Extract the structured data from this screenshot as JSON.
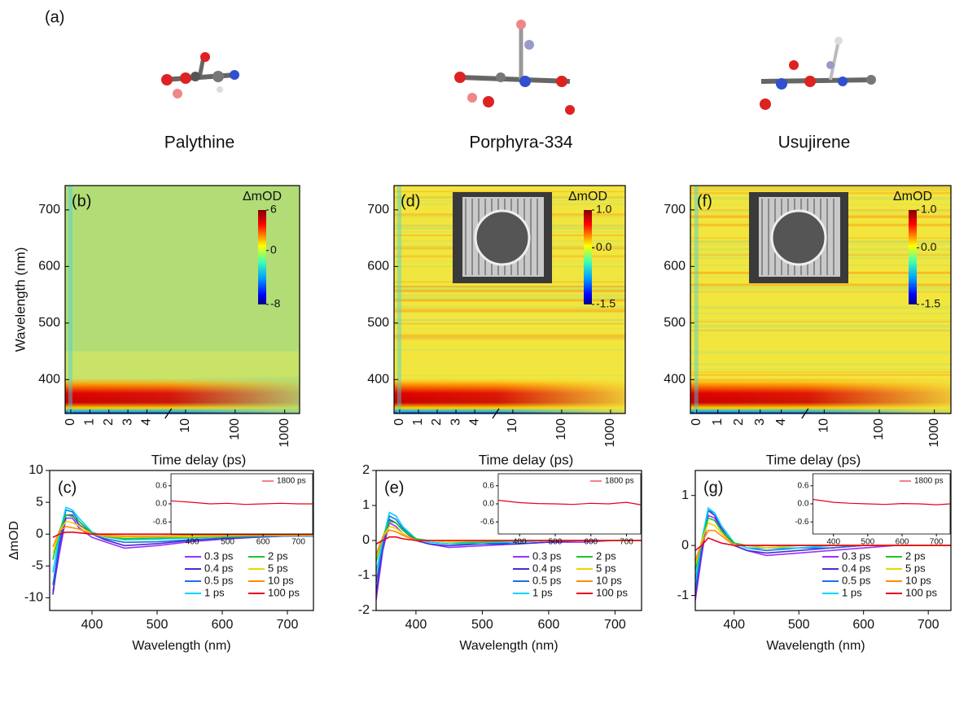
{
  "figure": {
    "panel_label": "(a)",
    "molecules": [
      "Palythine",
      "Porphyra-334",
      "Usujirene"
    ]
  },
  "chart_data": [
    {
      "type": "heatmap",
      "title": "(b)",
      "xlabel": "Time delay (ps)",
      "ylabel": "Wavelength (nm)",
      "xlim": [
        -0.3,
        2000
      ],
      "axis_break": 5,
      "xticks": [
        0,
        1,
        2,
        3,
        4,
        10,
        100,
        1000
      ],
      "ylim": [
        340,
        743
      ],
      "yticks": [
        400,
        500,
        600,
        700
      ],
      "colorbar": {
        "label": "ΔmOD",
        "lim": [
          -8,
          6
        ],
        "ticks": [
          6,
          0,
          -8
        ]
      }
    },
    {
      "type": "heatmap",
      "title": "(d)",
      "xlabel": "Time delay (ps)",
      "xlim": [
        -0.3,
        2000
      ],
      "axis_break": 5,
      "xticks": [
        0,
        1,
        2,
        3,
        4,
        10,
        100,
        1000
      ],
      "ylim": [
        340,
        743
      ],
      "yticks": [
        400,
        500,
        600,
        700
      ],
      "colorbar": {
        "label": "ΔmOD",
        "lim": [
          -1.5,
          1
        ],
        "ticks": [
          {
            "value": 1,
            "label": "1.0"
          },
          {
            "value": 0,
            "label": "0.0"
          },
          -1.5
        ]
      }
    },
    {
      "type": "heatmap",
      "title": "(f)",
      "xlabel": "Time delay (ps)",
      "xlim": [
        -0.3,
        2000
      ],
      "axis_break": 5,
      "xticks": [
        0,
        1,
        2,
        3,
        4,
        10,
        100,
        1000
      ],
      "ylim": [
        340,
        743
      ],
      "yticks": [
        400,
        500,
        600,
        700
      ],
      "colorbar": {
        "label": "ΔmOD",
        "lim": [
          -1.5,
          1
        ],
        "ticks": [
          {
            "value": 1,
            "label": "1.0"
          },
          {
            "value": 0,
            "label": "0.0"
          },
          -1.5
        ]
      }
    },
    {
      "type": "line",
      "title": "(c)",
      "xlabel": "Wavelength (nm)",
      "ylabel": "ΔmOD",
      "xlim": [
        335,
        740
      ],
      "xticks": [
        400,
        500,
        600,
        700
      ],
      "ylim": [
        -12,
        10
      ],
      "yticks": [
        10,
        5,
        0,
        -5,
        -10
      ],
      "x": [
        340,
        350,
        360,
        370,
        380,
        400,
        420,
        450,
        500,
        550,
        600,
        650,
        700,
        740
      ],
      "series": [
        {
          "name": "0.3 ps",
          "color": "#9b30ff",
          "values": [
            -9,
            -3,
            2.5,
            2.5,
            1,
            -0.5,
            -1.2,
            -2.2,
            -1.8,
            -1.2,
            -0.8,
            -0.5,
            -0.3,
            -0.3
          ]
        },
        {
          "name": "0.4 ps",
          "color": "#4b2bd0",
          "values": [
            -9.5,
            -2,
            3,
            3,
            1.5,
            0,
            -0.9,
            -1.8,
            -1.5,
            -1,
            -0.7,
            -0.5,
            -0.3,
            -0.3
          ]
        },
        {
          "name": "0.5 ps",
          "color": "#1f6fe0",
          "values": [
            -8,
            -1,
            3.8,
            3.5,
            2,
            0,
            -0.7,
            -1.3,
            -1.2,
            -0.9,
            -0.6,
            -0.4,
            -0.3,
            -0.3
          ]
        },
        {
          "name": "1 ps",
          "color": "#00d4ff",
          "values": [
            -6,
            0,
            4.2,
            3.8,
            2.5,
            0.3,
            -0.4,
            -0.9,
            -0.8,
            -0.6,
            -0.4,
            -0.3,
            -0.2,
            -0.2
          ]
        },
        {
          "name": "2 ps",
          "color": "#22c22a",
          "values": [
            -4,
            0.5,
            3,
            2.8,
            2,
            0.2,
            -0.4,
            -0.7,
            -0.6,
            -0.5,
            -0.4,
            -0.3,
            -0.2,
            -0.2
          ]
        },
        {
          "name": "5 ps",
          "color": "#e8d800",
          "values": [
            -3,
            0.5,
            2,
            1.8,
            1.3,
            0,
            -0.3,
            -0.5,
            -0.4,
            -0.4,
            -0.3,
            -0.2,
            -0.2,
            -0.2
          ]
        },
        {
          "name": "10 ps",
          "color": "#ff8c00",
          "values": [
            -2,
            0.5,
            1.2,
            1,
            0.8,
            0,
            -0.2,
            -0.3,
            -0.3,
            -0.2,
            -0.2,
            -0.2,
            -0.1,
            -0.1
          ]
        },
        {
          "name": "100 ps",
          "color": "#e8001c",
          "values": [
            -0.5,
            0,
            0.3,
            0.3,
            0.2,
            0,
            0,
            0,
            0,
            0,
            0,
            0,
            0,
            0
          ]
        }
      ],
      "inset": {
        "xlim": [
          340,
          740
        ],
        "xticks": [
          400,
          500,
          600,
          700
        ],
        "ylim": [
          -1,
          1
        ],
        "yticks": [
          0.6,
          {
            "value": 0,
            "label": "0.0"
          },
          -0.6
        ],
        "x": [
          340,
          400,
          450,
          500,
          550,
          600,
          650,
          700,
          740
        ],
        "series": [
          {
            "name": "1800 ps",
            "color": "#e8001c",
            "values": [
              0.1,
              0.05,
              0,
              0.02,
              -0.02,
              0,
              0.02,
              0,
              0
            ]
          }
        ]
      }
    },
    {
      "type": "line",
      "title": "(e)",
      "xlabel": "Wavelength (nm)",
      "xlim": [
        340,
        740
      ],
      "xticks": [
        400,
        500,
        600,
        700
      ],
      "ylim": [
        -2,
        2
      ],
      "yticks": [
        2,
        1,
        0,
        -1,
        -2
      ],
      "x": [
        340,
        350,
        360,
        370,
        380,
        400,
        420,
        450,
        500,
        550,
        600,
        650,
        700,
        740
      ],
      "series": [
        {
          "name": "0.3 ps",
          "color": "#9b30ff",
          "values": [
            -1.7,
            -0.3,
            0.5,
            0.4,
            0.2,
            0,
            -0.1,
            -0.2,
            -0.15,
            -0.1,
            -0.05,
            -0.05,
            0,
            0
          ]
        },
        {
          "name": "0.4 ps",
          "color": "#4b2bd0",
          "values": [
            -1.5,
            -0.2,
            0.6,
            0.5,
            0.3,
            0,
            -0.1,
            -0.15,
            -0.1,
            -0.1,
            -0.05,
            0,
            0,
            0
          ]
        },
        {
          "name": "0.5 ps",
          "color": "#1f6fe0",
          "values": [
            -1.2,
            -0.1,
            0.7,
            0.6,
            0.35,
            0.05,
            -0.05,
            -0.1,
            -0.1,
            -0.05,
            0,
            0,
            0,
            0
          ]
        },
        {
          "name": "1 ps",
          "color": "#00d4ff",
          "values": [
            -0.9,
            0,
            0.8,
            0.7,
            0.4,
            0.05,
            -0.05,
            -0.1,
            -0.05,
            -0.05,
            0,
            0,
            0,
            0
          ]
        },
        {
          "name": "2 ps",
          "color": "#22c22a",
          "values": [
            -0.6,
            0.1,
            0.55,
            0.5,
            0.3,
            0.05,
            0,
            -0.05,
            -0.05,
            0,
            0,
            0,
            0,
            0
          ]
        },
        {
          "name": "5 ps",
          "color": "#e8d800",
          "values": [
            -0.5,
            0.1,
            0.4,
            0.35,
            0.2,
            0,
            0,
            -0.05,
            0,
            0,
            0,
            0,
            0,
            0
          ]
        },
        {
          "name": "10 ps",
          "color": "#ff8c00",
          "values": [
            -0.4,
            0.1,
            0.3,
            0.25,
            0.15,
            0,
            0,
            0,
            0,
            0,
            0,
            0,
            0,
            0
          ]
        },
        {
          "name": "100 ps",
          "color": "#e8001c",
          "values": [
            -0.1,
            0,
            0.1,
            0.1,
            0.05,
            0,
            0,
            0,
            0,
            0,
            0,
            0,
            0,
            0
          ]
        }
      ],
      "inset": {
        "xlim": [
          340,
          740
        ],
        "xticks": [
          400,
          500,
          600,
          700
        ],
        "ylim": [
          -1,
          1
        ],
        "yticks": [
          0.6,
          {
            "value": 0,
            "label": "0.0"
          },
          -0.6
        ],
        "x": [
          340,
          400,
          450,
          500,
          550,
          600,
          650,
          700,
          740
        ],
        "series": [
          {
            "name": "1800 ps",
            "color": "#e8001c",
            "values": [
              0.12,
              0.04,
              0.01,
              0,
              -0.02,
              0.02,
              0,
              0.05,
              -0.03
            ]
          }
        ]
      }
    },
    {
      "type": "line",
      "title": "(g)",
      "xlabel": "Wavelength (nm)",
      "xlim": [
        340,
        735
      ],
      "xticks": [
        400,
        500,
        600,
        700
      ],
      "ylim": [
        -1.3,
        1.5
      ],
      "yticks": [
        1,
        0,
        -1
      ],
      "x": [
        340,
        350,
        360,
        370,
        380,
        400,
        420,
        450,
        500,
        550,
        600,
        650,
        700,
        735
      ],
      "series": [
        {
          "name": "0.3 ps",
          "color": "#9b30ff",
          "values": [
            -1.1,
            -0.2,
            0.6,
            0.55,
            0.3,
            0,
            -0.1,
            -0.2,
            -0.15,
            -0.1,
            -0.05,
            0,
            0,
            0
          ]
        },
        {
          "name": "0.4 ps",
          "color": "#4b2bd0",
          "values": [
            -1,
            -0.1,
            0.7,
            0.6,
            0.35,
            0,
            -0.1,
            -0.15,
            -0.1,
            -0.05,
            0,
            0,
            0,
            0
          ]
        },
        {
          "name": "0.5 ps",
          "color": "#1f6fe0",
          "values": [
            -0.9,
            0,
            0.7,
            0.65,
            0.4,
            0.05,
            -0.05,
            -0.1,
            -0.05,
            -0.05,
            0,
            0,
            0,
            0
          ]
        },
        {
          "name": "1 ps",
          "color": "#00d4ff",
          "values": [
            -0.7,
            0.1,
            0.75,
            0.65,
            0.4,
            0.05,
            -0.05,
            -0.05,
            -0.05,
            0,
            0,
            0,
            0,
            0
          ]
        },
        {
          "name": "2 ps",
          "color": "#22c22a",
          "values": [
            -0.5,
            0.1,
            0.55,
            0.5,
            0.3,
            0.05,
            0,
            -0.05,
            0,
            0,
            0,
            0,
            0,
            0
          ]
        },
        {
          "name": "5 ps",
          "color": "#e8d800",
          "values": [
            -0.4,
            0.1,
            0.45,
            0.4,
            0.25,
            0,
            0,
            -0.05,
            0,
            0,
            0,
            0,
            0,
            0
          ]
        },
        {
          "name": "10 ps",
          "color": "#ff8c00",
          "values": [
            -0.3,
            0.05,
            0.3,
            0.3,
            0.2,
            0,
            0,
            0,
            0,
            0,
            0,
            0,
            0,
            0
          ]
        },
        {
          "name": "100 ps",
          "color": "#e8001c",
          "values": [
            -0.1,
            0,
            0.15,
            0.1,
            0.05,
            0,
            0,
            0,
            0,
            0,
            0,
            0,
            0,
            0
          ]
        }
      ],
      "inset": {
        "xlim": [
          340,
          740
        ],
        "xticks": [
          400,
          500,
          600,
          700
        ],
        "ylim": [
          -1,
          1
        ],
        "yticks": [
          0.6,
          {
            "value": 0,
            "label": "0.0"
          },
          -0.6
        ],
        "x": [
          340,
          400,
          450,
          500,
          550,
          600,
          650,
          700,
          740
        ],
        "series": [
          {
            "name": "1800 ps",
            "color": "#e8001c",
            "values": [
              0.15,
              0.05,
              0.02,
              0,
              -0.02,
              0.01,
              0,
              -0.03,
              0
            ]
          }
        ]
      }
    }
  ]
}
